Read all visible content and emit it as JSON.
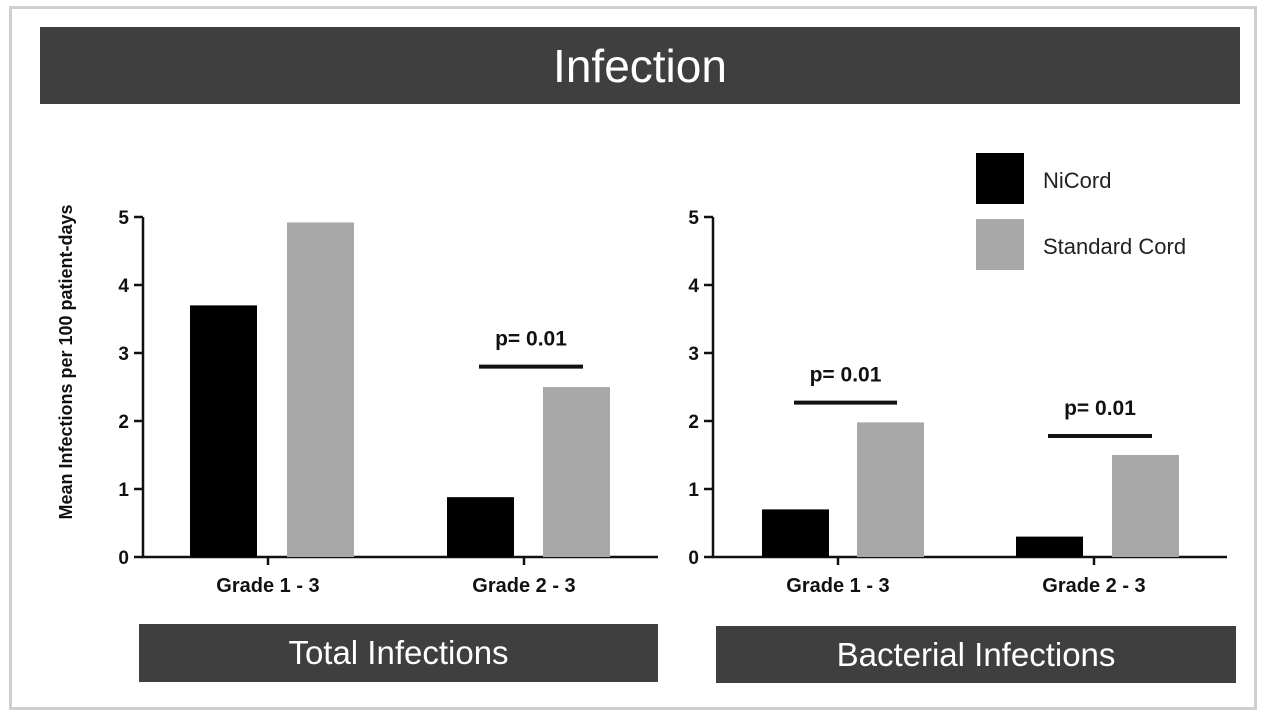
{
  "title": "Infection",
  "colors": {
    "NiCord": "#000000",
    "Standard Cord": "#a8a8a8",
    "banner": "#3f3f3f"
  },
  "chart_data": [
    {
      "type": "bar",
      "panel_label": "Total Infections",
      "ylabel": "Mean Infections per 100 patient-days",
      "ylim": [
        0,
        5
      ],
      "yticks": [
        0,
        1,
        2,
        3,
        4,
        5
      ],
      "categories": [
        "Grade 1 - 3",
        "Grade 2 - 3"
      ],
      "series": [
        {
          "name": "NiCord",
          "values": [
            3.7,
            0.88
          ]
        },
        {
          "name": "Standard Cord",
          "values": [
            4.92,
            2.5
          ]
        }
      ],
      "annotations": [
        {
          "category": "Grade 2 - 3",
          "text": "p= 0.01",
          "bar_height": 2.8
        }
      ]
    },
    {
      "type": "bar",
      "panel_label": "Bacterial Infections",
      "ylim": [
        0,
        5
      ],
      "yticks": [
        0,
        1,
        2,
        3,
        4,
        5
      ],
      "categories": [
        "Grade 1 - 3",
        "Grade 2 - 3"
      ],
      "series": [
        {
          "name": "NiCord",
          "values": [
            0.7,
            0.3
          ]
        },
        {
          "name": "Standard Cord",
          "values": [
            1.98,
            1.5
          ]
        }
      ],
      "annotations": [
        {
          "category": "Grade 1 - 3",
          "text": "p= 0.01",
          "bar_height": 2.27
        },
        {
          "category": "Grade 2 - 3",
          "text": "p= 0.01",
          "bar_height": 1.78
        }
      ],
      "legend": {
        "position": "top-right",
        "entries": [
          "NiCord",
          "Standard Cord"
        ]
      }
    }
  ]
}
